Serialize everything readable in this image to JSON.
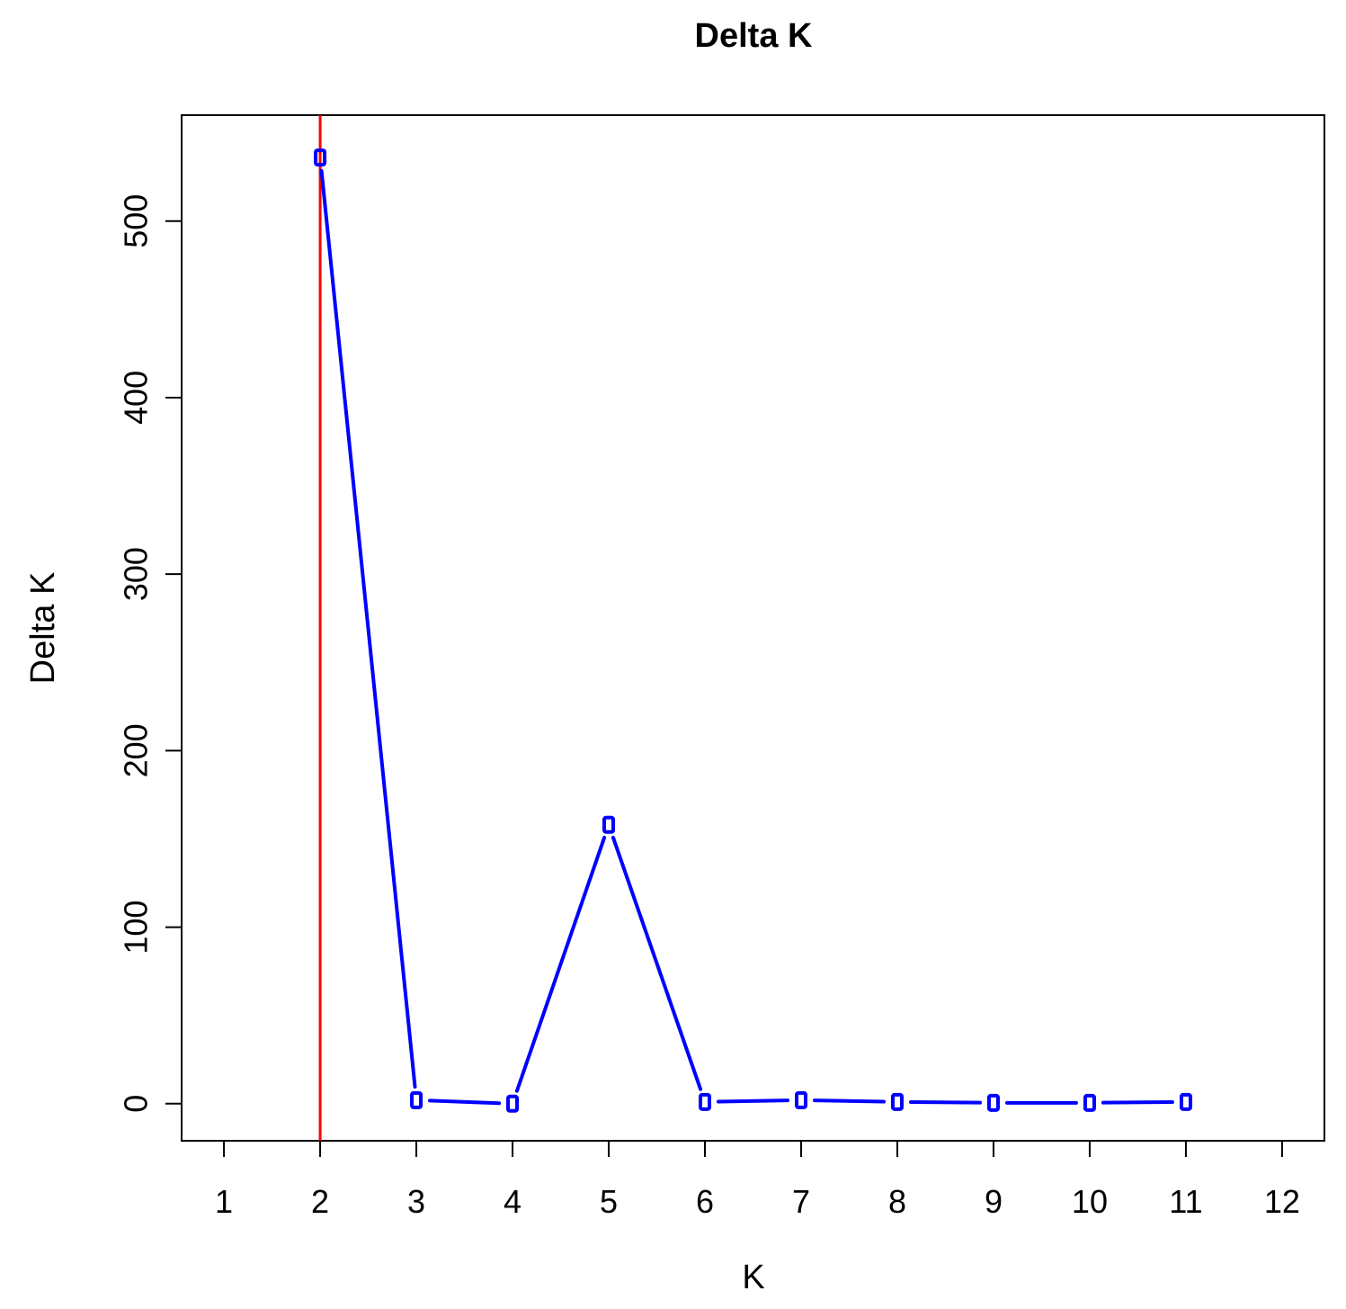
{
  "chart_data": {
    "type": "line",
    "title": "Delta K",
    "xlabel": "K",
    "ylabel": "Delta K",
    "x_ticks": [
      1,
      2,
      3,
      4,
      5,
      6,
      7,
      8,
      9,
      10,
      11,
      12
    ],
    "y_ticks": [
      0,
      100,
      200,
      300,
      400,
      500
    ],
    "xlim": [
      0.56,
      12.44
    ],
    "ylim": [
      -21,
      560
    ],
    "grid": false,
    "series": [
      {
        "x": [
          2,
          3,
          4,
          5,
          6,
          7,
          8,
          9,
          10,
          11
        ],
        "values": [
          536,
          2,
          0,
          158,
          1,
          2,
          1,
          0.5,
          0.5,
          1
        ],
        "color": "#0000ff"
      }
    ],
    "reference_line": {
      "x": 2,
      "color": "#ff0000"
    }
  }
}
